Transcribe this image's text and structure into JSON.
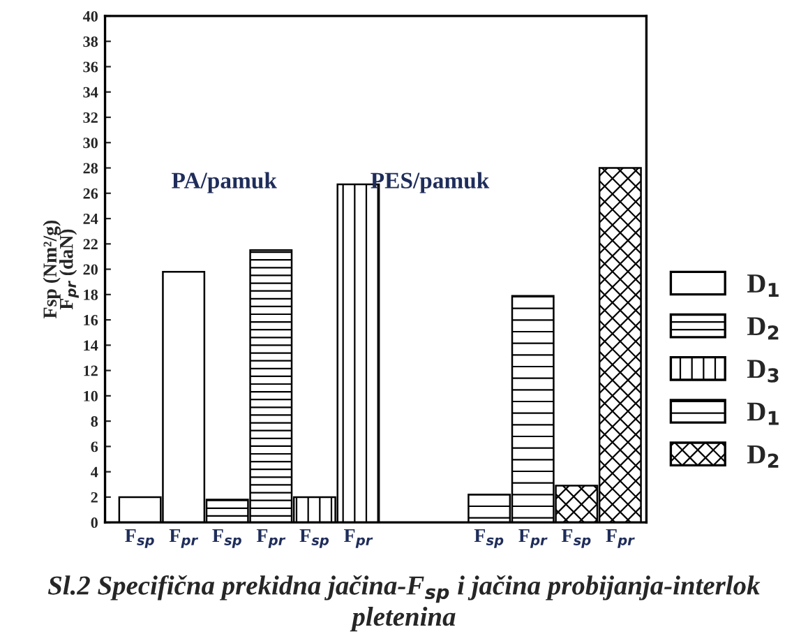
{
  "chart_data": {
    "type": "bar",
    "title": "Sl.2 Specifična prekidna jačina-F$_{sp}$ i jačina probijanja-interlok pletenina",
    "ylabel": "Fsp (Nm²/g)\nF$_{pr}$ (daN)",
    "categories": [
      "F$_{sp}$",
      "F$_{pr}$",
      "F$_{sp}$",
      "F$_{pr}$",
      "F$_{sp}$",
      "F$_{pr}$",
      null,
      null,
      "F$_{sp}$",
      "F$_{pr}$",
      "F$_{sp}$",
      "F$_{pr}$"
    ],
    "series": [
      {
        "name": "D$_{1}$",
        "color": "#ffffff",
        "values": [
          2.0,
          19.8,
          null,
          null,
          null,
          null,
          null,
          null,
          null,
          null,
          null,
          null
        ]
      },
      {
        "name": "D$_{2}$",
        "color": "#000000",
        "values": [
          null,
          null,
          1.8,
          21.5,
          null,
          null,
          null,
          null,
          null,
          null,
          null,
          null
        ]
      },
      {
        "name": "D$_{3}$",
        "color": "#000000",
        "values": [
          null,
          null,
          null,
          null,
          2.0,
          26.7,
          null,
          null,
          null,
          null,
          null,
          null
        ]
      },
      {
        "name": "D$_{1}$",
        "color": "#000000",
        "values": [
          null,
          null,
          null,
          null,
          null,
          null,
          null,
          null,
          2.2,
          17.9,
          null,
          null
        ]
      },
      {
        "name": "D$_{2}$",
        "color": "#000000",
        "values": [
          null,
          null,
          null,
          null,
          null,
          null,
          null,
          null,
          null,
          null,
          2.9,
          28.0
        ]
      }
    ],
    "annotations": [
      "PA/pamuk",
      "PES/pamuk"
    ],
    "ylim": [
      0,
      40
    ],
    "yticks": [
      0,
      2,
      4,
      6,
      8,
      10,
      12,
      14,
      16,
      18,
      20,
      22,
      24,
      26,
      28,
      30,
      32,
      34,
      36,
      38,
      40
    ],
    "grid": false,
    "legend": "right"
  }
}
